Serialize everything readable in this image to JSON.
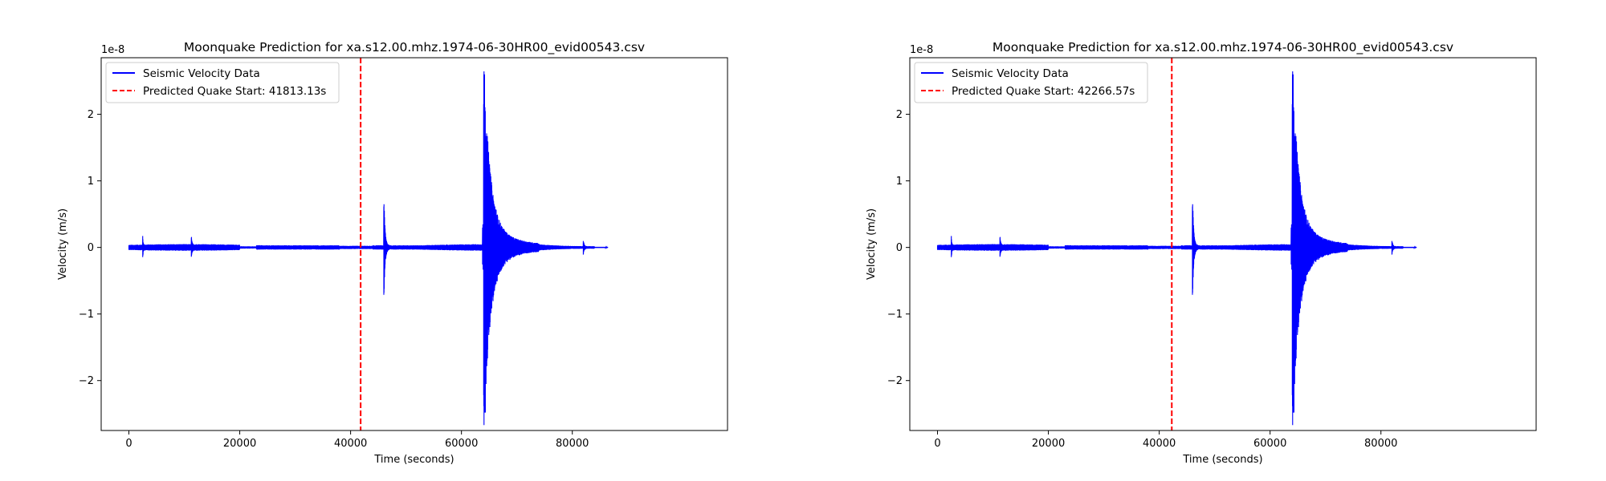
{
  "chart_data": [
    {
      "type": "line",
      "title": "Moonquake Prediction for xa.s12.00.mhz.1974-06-30HR00_evid00543.csv",
      "xlabel": "Time (seconds)",
      "ylabel": "Velocity (m/s)",
      "y_offset_label": "1e-8",
      "xlim": [
        -5000,
        108000
      ],
      "ylim": [
        -2.75e-08,
        2.85e-08
      ],
      "xticks": [
        0,
        20000,
        40000,
        60000,
        80000
      ],
      "xtick_labels": [
        "0",
        "20000",
        "40000",
        "60000",
        "80000"
      ],
      "yticks": [
        -2e-08,
        -1e-08,
        0,
        1e-08,
        2e-08
      ],
      "ytick_labels": [
        "−2",
        "−1",
        "0",
        "1",
        "2"
      ],
      "grid": false,
      "legend_position": "upper-left",
      "series": [
        {
          "name": "Seismic Velocity Data",
          "color": "#0000ff",
          "style": "solid",
          "x_range": [
            0,
            86400
          ],
          "peak_positive": 2.6e-08,
          "peak_negative": -2.48e-08,
          "peak_time": 64100
        }
      ],
      "predicted_start": {
        "label": "Predicted Quake Start: 41813.13s",
        "x": 41813.13,
        "color": "#ff0000",
        "style": "dashed"
      }
    },
    {
      "type": "line",
      "title": "Moonquake Prediction for xa.s12.00.mhz.1974-06-30HR00_evid00543.csv",
      "xlabel": "Time (seconds)",
      "ylabel": "Velocity (m/s)",
      "y_offset_label": "1e-8",
      "xlim": [
        -5000,
        108000
      ],
      "ylim": [
        -2.75e-08,
        2.85e-08
      ],
      "xticks": [
        0,
        20000,
        40000,
        60000,
        80000
      ],
      "xtick_labels": [
        "0",
        "20000",
        "40000",
        "60000",
        "80000"
      ],
      "yticks": [
        -2e-08,
        -1e-08,
        0,
        1e-08,
        2e-08
      ],
      "ytick_labels": [
        "−2",
        "−1",
        "0",
        "1",
        "2"
      ],
      "grid": false,
      "legend_position": "upper-left",
      "series": [
        {
          "name": "Seismic Velocity Data",
          "color": "#0000ff",
          "style": "solid",
          "x_range": [
            0,
            86400
          ],
          "peak_positive": 2.6e-08,
          "peak_negative": -2.48e-08,
          "peak_time": 64100
        }
      ],
      "predicted_start": {
        "label": "Predicted Quake Start: 42266.57s",
        "x": 42266.57,
        "color": "#ff0000",
        "style": "dashed"
      }
    }
  ]
}
